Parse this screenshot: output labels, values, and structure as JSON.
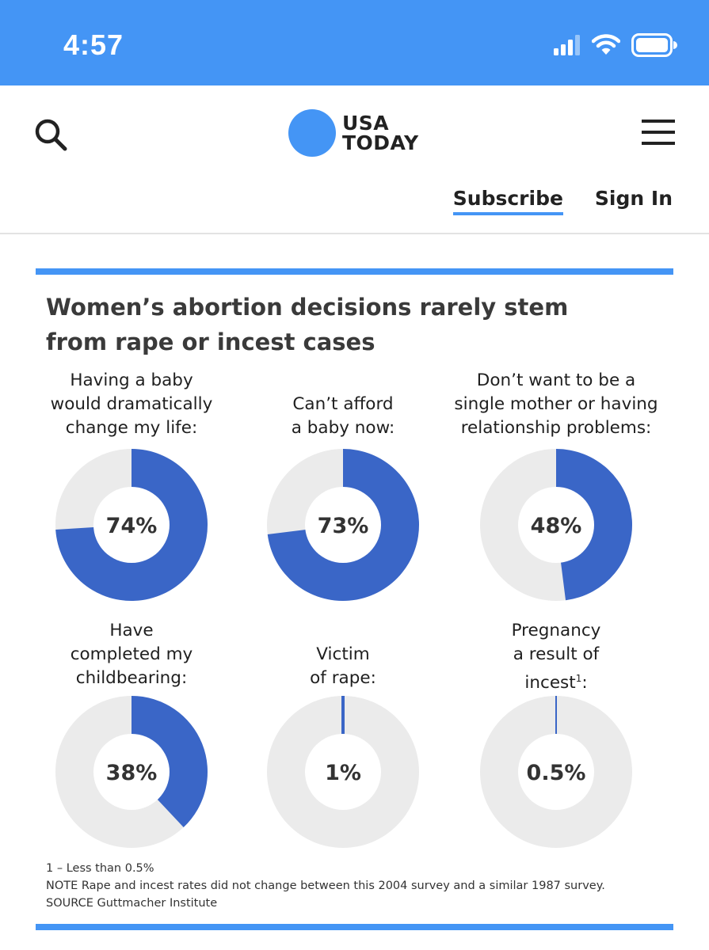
{
  "status_bar": {
    "time": "4:57"
  },
  "header": {
    "logo_line1": "USA",
    "logo_line2": "TODAY",
    "subscribe_label": "Subscribe",
    "signin_label": "Sign In"
  },
  "colors": {
    "accent": "#4495f5",
    "donut_fill": "#3a66c7",
    "donut_bg": "#ebebeb"
  },
  "article": {
    "headline_line1": "Women’s abortion decisions rarely stem",
    "headline_line2": "from rape or incest cases",
    "footnote": "1 – Less than 0.5%",
    "note": "NOTE Rape and incest rates did not change between this 2004 survey and a similar 1987 survey.",
    "source": "SOURCE Guttmacher Institute"
  },
  "chart_data": {
    "type": "pie",
    "title": "Women’s abortion decisions rarely stem from rape or incest cases",
    "items": [
      {
        "label": "Having a baby\nwould dramatically\nchange my life:",
        "value": 74,
        "display": "74%"
      },
      {
        "label": "Can’t afford\na baby now:",
        "value": 73,
        "display": "73%"
      },
      {
        "label": "Don’t want to be a\nsingle mother or having\nrelationship problems:",
        "value": 48,
        "display": "48%"
      },
      {
        "label": "Have\ncompleted my\nchildbearing:",
        "value": 38,
        "display": "38%"
      },
      {
        "label": "Victim\nof rape:",
        "value": 1,
        "display": "1%"
      },
      {
        "label": "Pregnancy\na result of\nincest",
        "label_sup": "1",
        "label_suffix": ":",
        "value": 0.5,
        "display": "0.5%"
      }
    ]
  }
}
